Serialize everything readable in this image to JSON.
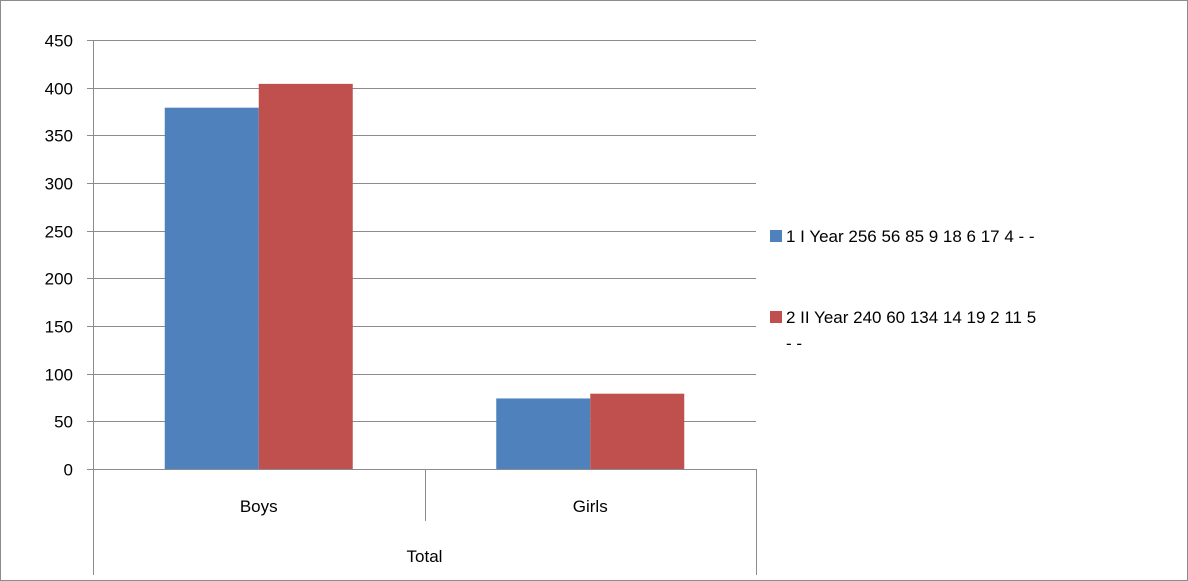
{
  "chart_data": {
    "type": "bar",
    "title": "",
    "xlabel": "",
    "ylabel": "",
    "group_label": "Total",
    "categories": [
      "Boys",
      "Girls"
    ],
    "series": [
      {
        "name": "1 I Year  256 56 85 9 18 6 17 4 - -",
        "legend_lines": [
          "1 I Year  256 56 85 9 18 6 17 4 - -"
        ],
        "values": [
          379,
          74
        ],
        "color": "#4f81bd"
      },
      {
        "name": "2 II Year 240 60 134 14 19 2 11 5 - -",
        "legend_lines": [
          "2 II Year 240 60 134 14 19 2 11 5",
          "- -"
        ],
        "values": [
          404,
          79
        ],
        "color": "#c0504d"
      }
    ],
    "ylim": [
      0,
      450
    ],
    "yticks": [
      0,
      50,
      100,
      150,
      200,
      250,
      300,
      350,
      400,
      450
    ],
    "grid": true,
    "legend_position": "right"
  }
}
